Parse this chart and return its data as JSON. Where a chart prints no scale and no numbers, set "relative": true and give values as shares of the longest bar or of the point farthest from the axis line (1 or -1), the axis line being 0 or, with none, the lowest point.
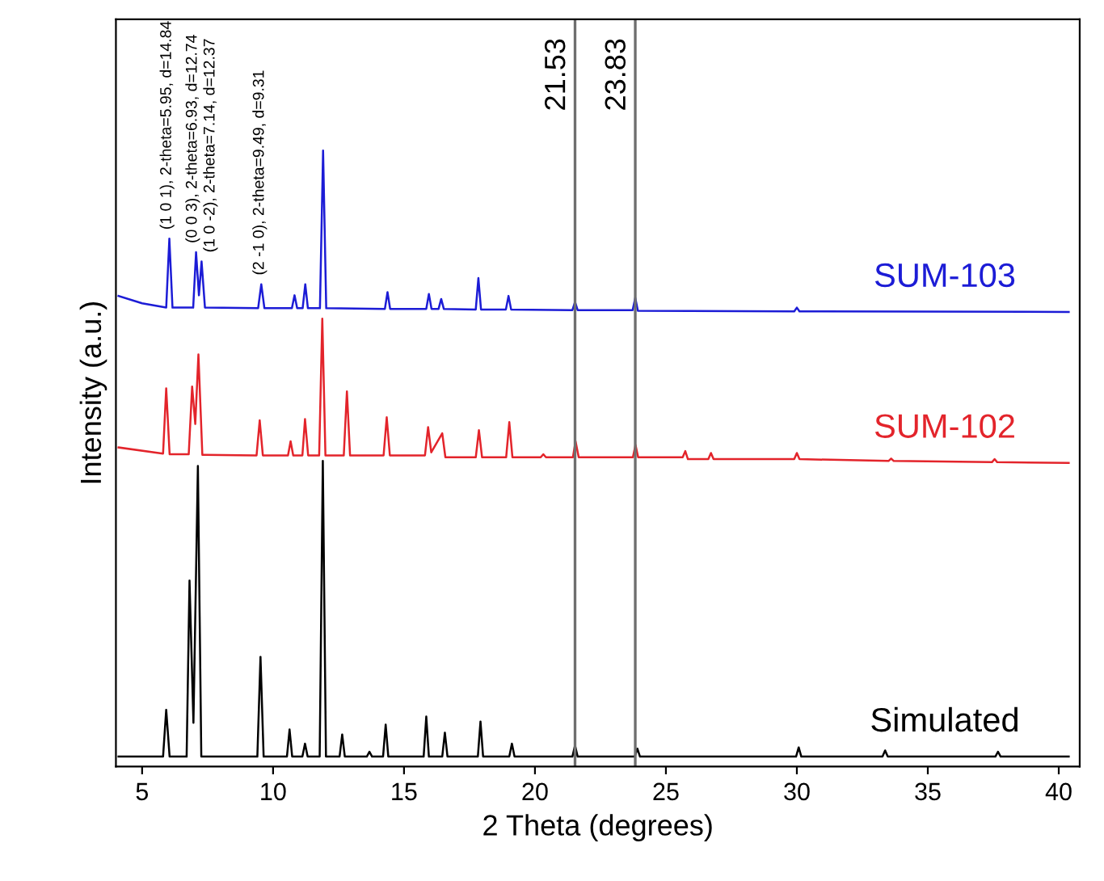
{
  "chart_data": {
    "type": "line",
    "relative": true,
    "xlabel": "2 Theta (degrees)",
    "ylabel": "Intensity (a.u.)",
    "xlim": [
      4,
      40.8
    ],
    "xticks": [
      5,
      10,
      15,
      20,
      25,
      30,
      35,
      40
    ],
    "grid": false,
    "legend": false,
    "marker": "none",
    "line_style": "solid",
    "series": [
      {
        "name": "SUM-103",
        "color": "#1c1cd6",
        "x": [
          4.1,
          5.0,
          5.92,
          6.04,
          6.16,
          6.95,
          7.06,
          7.17,
          7.27,
          7.4,
          9.43,
          9.55,
          9.67,
          10.72,
          10.82,
          10.92,
          11.13,
          11.23,
          11.33,
          11.79,
          11.91,
          12.03,
          14.27,
          14.37,
          14.47,
          15.85,
          15.95,
          16.05,
          16.32,
          16.42,
          16.52,
          17.74,
          17.84,
          17.94,
          18.89,
          18.99,
          19.09,
          21.43,
          21.53,
          21.63,
          23.73,
          23.83,
          23.93,
          29.9,
          30.0,
          30.1,
          40.38
        ],
        "values": [
          0.764,
          0.752,
          0.745,
          0.857,
          0.745,
          0.745,
          0.835,
          0.765,
          0.82,
          0.745,
          0.744,
          0.783,
          0.744,
          0.744,
          0.765,
          0.744,
          0.744,
          0.783,
          0.744,
          0.744,
          1.0,
          0.744,
          0.743,
          0.77,
          0.743,
          0.743,
          0.767,
          0.743,
          0.743,
          0.759,
          0.743,
          0.742,
          0.793,
          0.742,
          0.742,
          0.764,
          0.742,
          0.741,
          0.754,
          0.741,
          0.741,
          0.761,
          0.74,
          0.739,
          0.745,
          0.739,
          0.738
        ]
      },
      {
        "name": "SUM-102",
        "color": "#e3242b",
        "x": [
          4.1,
          5.8,
          5.92,
          6.05,
          6.78,
          6.91,
          7.03,
          7.15,
          7.3,
          9.37,
          9.49,
          9.61,
          10.57,
          10.67,
          10.77,
          11.12,
          11.22,
          11.34,
          11.76,
          11.88,
          12.0,
          12.7,
          12.82,
          12.94,
          14.22,
          14.34,
          14.46,
          15.8,
          15.92,
          16.04,
          16.46,
          16.58,
          17.74,
          17.86,
          17.98,
          18.9,
          19.02,
          19.14,
          20.22,
          20.32,
          20.42,
          21.45,
          21.55,
          21.67,
          23.74,
          23.84,
          23.94,
          25.64,
          25.74,
          25.84,
          26.62,
          26.72,
          26.82,
          29.9,
          30.0,
          30.1,
          33.5,
          33.6,
          33.7,
          37.45,
          37.55,
          37.65,
          40.38
        ],
        "values": [
          0.518,
          0.508,
          0.614,
          0.507,
          0.507,
          0.617,
          0.556,
          0.669,
          0.506,
          0.505,
          0.562,
          0.505,
          0.505,
          0.528,
          0.505,
          0.505,
          0.564,
          0.505,
          0.505,
          0.727,
          0.505,
          0.505,
          0.609,
          0.505,
          0.505,
          0.567,
          0.505,
          0.505,
          0.551,
          0.51,
          0.541,
          0.502,
          0.502,
          0.546,
          0.502,
          0.502,
          0.559,
          0.502,
          0.502,
          0.507,
          0.502,
          0.502,
          0.528,
          0.502,
          0.502,
          0.522,
          0.502,
          0.502,
          0.512,
          0.499,
          0.499,
          0.509,
          0.499,
          0.499,
          0.509,
          0.499,
          0.496,
          0.5,
          0.496,
          0.494,
          0.499,
          0.494,
          0.493
        ]
      },
      {
        "name": "Simulated",
        "color": "#000000",
        "x": [
          4.1,
          5.8,
          5.92,
          6.05,
          6.7,
          6.81,
          6.96,
          7.13,
          7.26,
          9.4,
          9.52,
          9.64,
          10.53,
          10.63,
          10.73,
          11.12,
          11.22,
          11.32,
          11.78,
          11.9,
          12.02,
          12.54,
          12.64,
          12.74,
          13.58,
          13.68,
          13.78,
          14.2,
          14.3,
          14.4,
          15.75,
          15.85,
          15.95,
          16.46,
          16.56,
          16.66,
          17.82,
          17.92,
          18.02,
          19.02,
          19.12,
          19.22,
          21.43,
          21.53,
          21.63,
          23.81,
          23.91,
          24.01,
          29.97,
          30.07,
          30.17,
          33.27,
          33.37,
          33.47,
          37.58,
          37.68,
          37.78,
          40.38
        ],
        "values": [
          0.016,
          0.016,
          0.092,
          0.016,
          0.016,
          0.302,
          0.071,
          0.488,
          0.016,
          0.016,
          0.178,
          0.016,
          0.016,
          0.06,
          0.016,
          0.016,
          0.037,
          0.016,
          0.016,
          0.496,
          0.016,
          0.016,
          0.052,
          0.016,
          0.016,
          0.024,
          0.016,
          0.016,
          0.068,
          0.016,
          0.016,
          0.081,
          0.016,
          0.016,
          0.055,
          0.016,
          0.016,
          0.073,
          0.016,
          0.016,
          0.037,
          0.016,
          0.016,
          0.034,
          0.016,
          0.016,
          0.029,
          0.016,
          0.016,
          0.031,
          0.016,
          0.016,
          0.026,
          0.016,
          0.016,
          0.024,
          0.016,
          0.016
        ]
      }
    ],
    "ref_lines": [
      {
        "axis": "x",
        "value": 21.53,
        "label": "21.53",
        "color": "#6e6e6e"
      },
      {
        "axis": "x",
        "value": 23.83,
        "label": "23.83",
        "color": "#6e6e6e"
      }
    ],
    "annotations": [
      {
        "text": "(1 0 1), 2-theta=5.95, d=14.84",
        "x": 5.95,
        "y": 0.857
      },
      {
        "text": "(0 0 3), 2-theta=6.93, d=12.74",
        "x": 6.93,
        "y": 0.835
      },
      {
        "text": "(1 0 -2), 2-theta=7.14, d=12.37",
        "x": 7.14,
        "y": 0.82
      },
      {
        "text": "(2 -1 0), 2-theta=9.49, d=9.31",
        "x": 9.49,
        "y": 0.783
      }
    ]
  }
}
